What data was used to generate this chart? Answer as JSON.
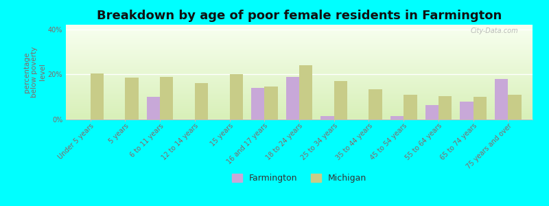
{
  "title": "Breakdown by age of poor female residents in Farmington",
  "ylabel": "percentage\nbelow poverty\nlevel",
  "categories": [
    "Under 5 years",
    "5 years",
    "6 to 11 years",
    "12 to 14 years",
    "15 years",
    "16 and 17 years",
    "18 to 24 years",
    "25 to 34 years",
    "35 to 44 years",
    "45 to 54 years",
    "55 to 64 years",
    "65 to 74 years",
    "75 years and over"
  ],
  "farmington": [
    null,
    null,
    10,
    null,
    null,
    14,
    19,
    1.5,
    null,
    1.5,
    6.5,
    8,
    18
  ],
  "michigan": [
    20.5,
    18.5,
    19,
    16,
    20,
    14.5,
    24,
    17,
    13.5,
    11,
    10.5,
    10,
    11
  ],
  "farmington_color": "#c8a8d8",
  "michigan_color": "#c8cc88",
  "outer_bg": "#00ffff",
  "ylim": [
    0,
    42
  ],
  "yticks": [
    0,
    20,
    40
  ],
  "ytick_labels": [
    "0%",
    "20%",
    "40%"
  ],
  "bar_width": 0.38,
  "title_fontsize": 13,
  "axis_label_fontsize": 7.5,
  "tick_fontsize": 7,
  "legend_fontsize": 9,
  "ylabel_color": "#886666",
  "tick_color": "#886666",
  "watermark": "City-Data.com"
}
